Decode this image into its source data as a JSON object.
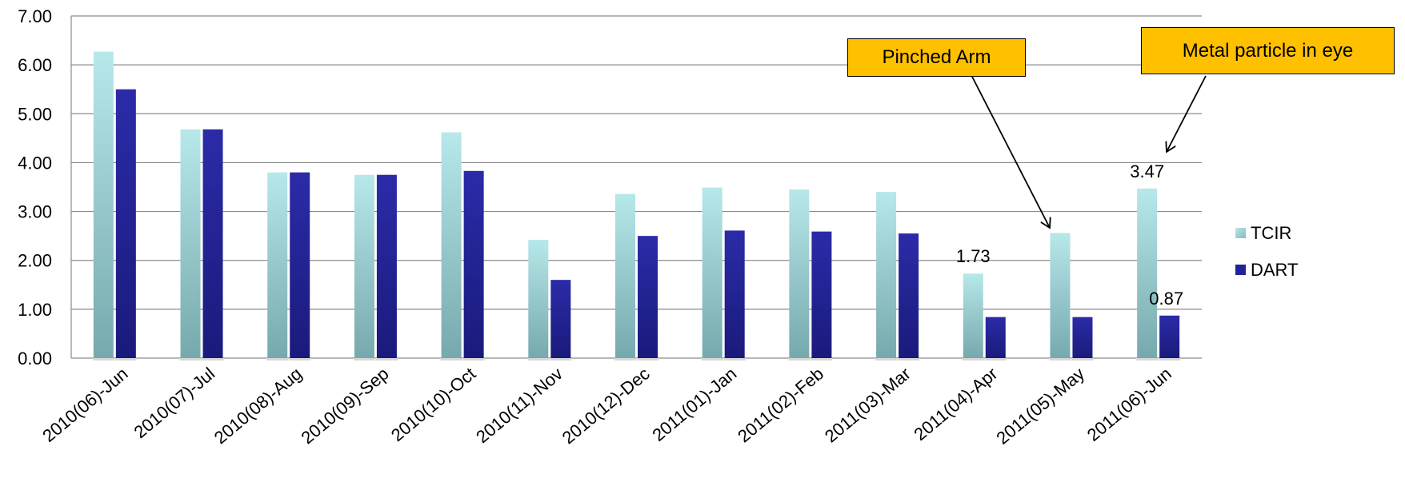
{
  "chart_data": {
    "type": "bar",
    "categories": [
      "2010(06)-Jun",
      "2010(07)-Jul",
      "2010(08)-Aug",
      "2010(09)-Sep",
      "2010(10)-Oct",
      "2010(11)-Nov",
      "2010(12)-Dec",
      "2011(01)-Jan",
      "2011(02)-Feb",
      "2011(03)-Mar",
      "2011(04)-Apr",
      "2011(05)-May",
      "2011(06)-Jun"
    ],
    "series": [
      {
        "name": "TCIR",
        "values": [
          6.27,
          4.68,
          3.8,
          3.75,
          4.62,
          2.42,
          3.36,
          3.49,
          3.45,
          3.4,
          1.73,
          2.56,
          3.47
        ],
        "color": "#a8dde0"
      },
      {
        "name": "DART",
        "values": [
          5.5,
          4.68,
          3.8,
          3.75,
          3.83,
          1.6,
          2.5,
          2.61,
          2.59,
          2.55,
          0.84,
          0.84,
          0.87
        ],
        "color": "#22229a"
      }
    ],
    "ylim": [
      0,
      7
    ],
    "yticks": [
      "0.00",
      "1.00",
      "2.00",
      "3.00",
      "4.00",
      "5.00",
      "6.00",
      "7.00"
    ],
    "grid": true,
    "legend_position": "right",
    "data_labels": [
      {
        "series": "TCIR",
        "category": "2011(04)-Apr",
        "text": "1.73"
      },
      {
        "series": "TCIR",
        "category": "2011(06)-Jun",
        "text": "3.47"
      },
      {
        "series": "DART",
        "category": "2011(06)-Jun",
        "text": "0.87"
      }
    ],
    "annotations": [
      {
        "text": "Pinched Arm",
        "points_to": {
          "series": "TCIR",
          "category": "2011(05)-May"
        }
      },
      {
        "text": "Metal particle in eye",
        "points_to": {
          "series": "TCIR",
          "category": "2011(06)-Jun"
        }
      }
    ]
  }
}
